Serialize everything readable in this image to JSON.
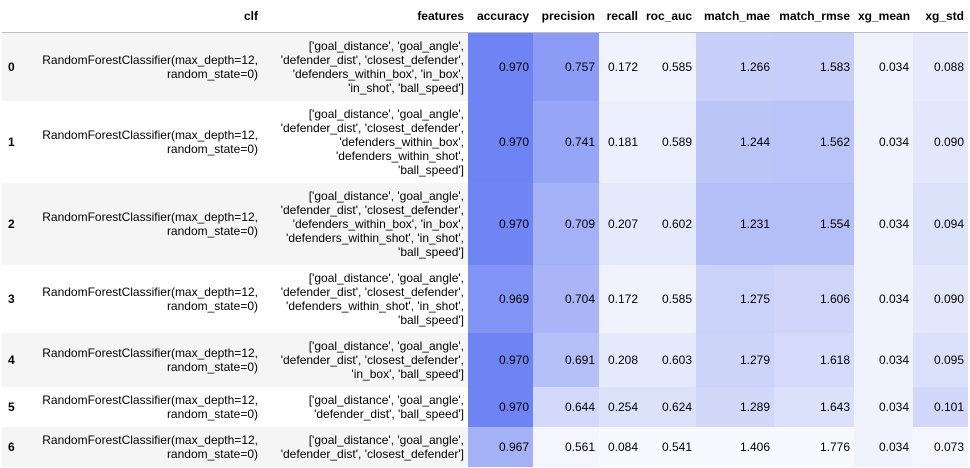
{
  "table": {
    "columns": [
      "",
      "clf",
      "features",
      "accuracy",
      "precision",
      "recall",
      "roc_auc",
      "match_mae",
      "match_rmse",
      "xg_mean",
      "xg_std"
    ],
    "rows": [
      {
        "index": "0",
        "clf": "RandomForestClassifier(max_depth=12,\nrandom_state=0)",
        "features": "['goal_distance', 'goal_angle',\n'defender_dist', 'closest_defender',\n'defenders_within_box', 'in_box',\n'in_shot', 'ball_speed']",
        "accuracy": "0.970",
        "precision": "0.757",
        "recall": "0.172",
        "roc_auc": "0.585",
        "match_mae": "1.266",
        "match_rmse": "1.583",
        "xg_mean": "0.034",
        "xg_std": "0.088"
      },
      {
        "index": "1",
        "clf": "RandomForestClassifier(max_depth=12,\nrandom_state=0)",
        "features": "['goal_distance', 'goal_angle',\n'defender_dist', 'closest_defender',\n'defenders_within_box',\n'defenders_within_shot',\n'ball_speed']",
        "accuracy": "0.970",
        "precision": "0.741",
        "recall": "0.181",
        "roc_auc": "0.589",
        "match_mae": "1.244",
        "match_rmse": "1.562",
        "xg_mean": "0.034",
        "xg_std": "0.090"
      },
      {
        "index": "2",
        "clf": "RandomForestClassifier(max_depth=12,\nrandom_state=0)",
        "features": "['goal_distance', 'goal_angle',\n'defender_dist', 'closest_defender',\n'defenders_within_box', 'in_box',\n'defenders_within_shot', 'in_shot',\n'ball_speed']",
        "accuracy": "0.970",
        "precision": "0.709",
        "recall": "0.207",
        "roc_auc": "0.602",
        "match_mae": "1.231",
        "match_rmse": "1.554",
        "xg_mean": "0.034",
        "xg_std": "0.094"
      },
      {
        "index": "3",
        "clf": "RandomForestClassifier(max_depth=12,\nrandom_state=0)",
        "features": "['goal_distance', 'goal_angle',\n'defender_dist', 'closest_defender',\n'defenders_within_shot', 'in_shot',\n'ball_speed']",
        "accuracy": "0.969",
        "precision": "0.704",
        "recall": "0.172",
        "roc_auc": "0.585",
        "match_mae": "1.275",
        "match_rmse": "1.606",
        "xg_mean": "0.034",
        "xg_std": "0.090"
      },
      {
        "index": "4",
        "clf": "RandomForestClassifier(max_depth=12,\nrandom_state=0)",
        "features": "['goal_distance', 'goal_angle',\n'defender_dist', 'closest_defender',\n'in_box', 'ball_speed']",
        "accuracy": "0.970",
        "precision": "0.691",
        "recall": "0.208",
        "roc_auc": "0.603",
        "match_mae": "1.279",
        "match_rmse": "1.618",
        "xg_mean": "0.034",
        "xg_std": "0.095"
      },
      {
        "index": "5",
        "clf": "RandomForestClassifier(max_depth=12,\nrandom_state=0)",
        "features": "['goal_distance', 'goal_angle',\n'defender_dist', 'ball_speed']",
        "accuracy": "0.970",
        "precision": "0.644",
        "recall": "0.254",
        "roc_auc": "0.624",
        "match_mae": "1.289",
        "match_rmse": "1.643",
        "xg_mean": "0.034",
        "xg_std": "0.101"
      },
      {
        "index": "6",
        "clf": "RandomForestClassifier(max_depth=12,\nrandom_state=0)",
        "features": "['goal_distance', 'goal_angle',\n'defender_dist', 'closest_defender']",
        "accuracy": "0.967",
        "precision": "0.561",
        "recall": "0.084",
        "roc_auc": "0.541",
        "match_mae": "1.406",
        "match_rmse": "1.776",
        "xg_mean": "0.034",
        "xg_std": "0.073"
      }
    ]
  },
  "gradient_colors": {
    "accuracy": [
      "#6f84f4",
      "#6f84f4",
      "#7086f4",
      "#8294f5",
      "#6f84f4",
      "#6f84f4",
      "#a4b1f7"
    ],
    "precision": [
      "#8c9cf6",
      "#96a5f6",
      "#a4b1f7",
      "#a9b5f7",
      "#b6c0f8",
      "#d3d9fa",
      "#f4f5fe"
    ],
    "recall": [
      "#f0f2fd",
      "#eceffd",
      "#e5e9fc",
      "#f0f2fd",
      "#e5e9fc",
      "#dde2fb",
      "#f8f9fe"
    ],
    "roc_auc": [
      "#f0f2fd",
      "#eceffd",
      "#e5e9fc",
      "#f0f2fd",
      "#e5e9fc",
      "#dde2fb",
      "#f8f9fe"
    ],
    "match_mae": [
      "#c8d0f9",
      "#bcc5f8",
      "#b4bff8",
      "#cbd2f9",
      "#cdd4f9",
      "#d2d8fa",
      "#f8f9fe"
    ],
    "match_rmse": [
      "#c6cef9",
      "#bac4f8",
      "#b4bff8",
      "#ced5f9",
      "#d4dafa",
      "#dbe0fb",
      "#f8f9fe"
    ],
    "xg_mean": [
      "#f0f2fd",
      "#f0f2fd",
      "#f0f2fd",
      "#f0f2fd",
      "#f0f2fd",
      "#f0f2fd",
      "#f0f2fd"
    ],
    "xg_std": [
      "#e7eafc",
      "#e3e7fc",
      "#dde2fb",
      "#e3e7fc",
      "#dbe0fb",
      "#d2d8fa",
      "#f4f5fe"
    ]
  }
}
